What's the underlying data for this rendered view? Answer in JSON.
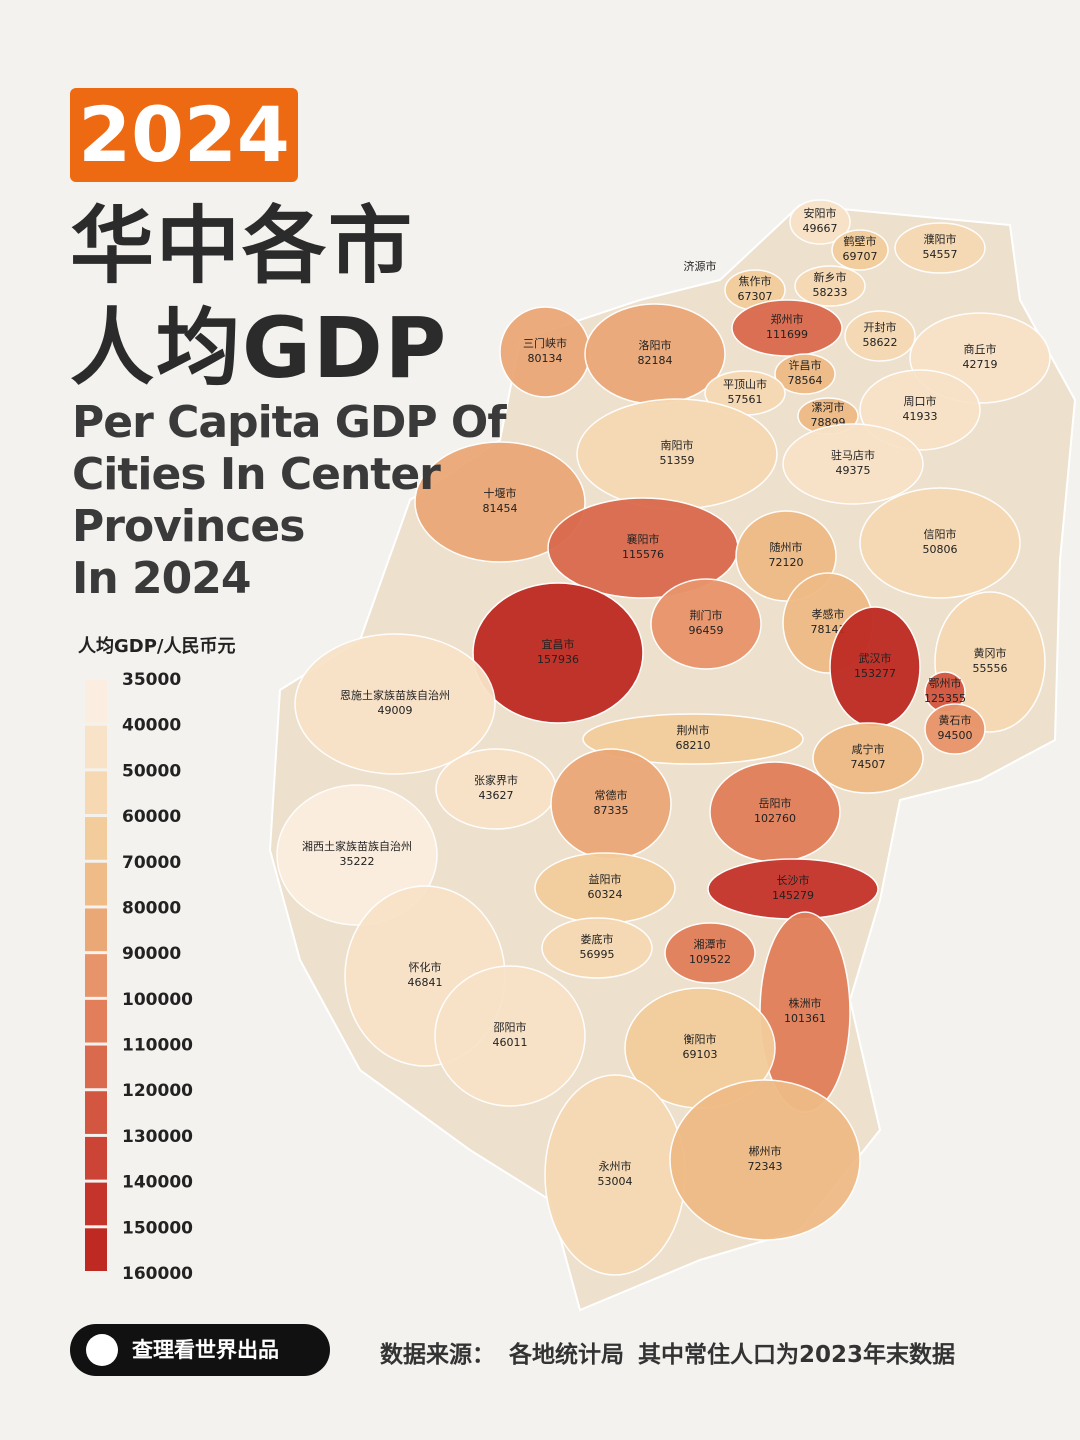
{
  "header": {
    "year": "2024",
    "title_cn": [
      "华中各市",
      "人均GDP"
    ],
    "title_en": [
      "Per Capita GDP Of",
      "Cities In Center",
      "Provinces",
      "In 2024"
    ]
  },
  "legend": {
    "title": "人均GDP/人民币元",
    "ticks": [
      35000,
      40000,
      50000,
      60000,
      70000,
      80000,
      90000,
      100000,
      110000,
      120000,
      130000,
      140000,
      150000,
      160000
    ],
    "colors": [
      "#fbeee0",
      "#f8e3c8",
      "#f6d9b3",
      "#f3cc9c",
      "#efbb86",
      "#eba877",
      "#e8946a",
      "#e27f5a",
      "#da6a4d",
      "#d35641",
      "#cc4436",
      "#c4342b",
      "#be2a22"
    ]
  },
  "cities": [
    {
      "name": "安阳市",
      "value": 49667
    },
    {
      "name": "鹤壁市",
      "value": 69707
    },
    {
      "name": "濮阳市",
      "value": 54557
    },
    {
      "name": "济源市",
      "value": null
    },
    {
      "name": "焦作市",
      "value": 67307
    },
    {
      "name": "新乡市",
      "value": 58233
    },
    {
      "name": "三门峡市",
      "value": 80134
    },
    {
      "name": "洛阳市",
      "value": 82184
    },
    {
      "name": "郑州市",
      "value": 111699
    },
    {
      "name": "开封市",
      "value": 58622
    },
    {
      "name": "商丘市",
      "value": 42719
    },
    {
      "name": "许昌市",
      "value": 78564
    },
    {
      "name": "平顶山市",
      "value": 57561
    },
    {
      "name": "周口市",
      "value": 41933
    },
    {
      "name": "漯河市",
      "value": 78899
    },
    {
      "name": "南阳市",
      "value": 51359
    },
    {
      "name": "驻马店市",
      "value": 49375
    },
    {
      "name": "十堰市",
      "value": 81454
    },
    {
      "name": "襄阳市",
      "value": 115576
    },
    {
      "name": "随州市",
      "value": 72120
    },
    {
      "name": "信阳市",
      "value": 50806
    },
    {
      "name": "宜昌市",
      "value": 157936
    },
    {
      "name": "荆门市",
      "value": 96459
    },
    {
      "name": "孝感市",
      "value": 78141
    },
    {
      "name": "武汉市",
      "value": 153277
    },
    {
      "name": "黄冈市",
      "value": 55556
    },
    {
      "name": "鄂州市",
      "value": 125355
    },
    {
      "name": "恩施土家族苗族自治州",
      "value": 49009
    },
    {
      "name": "荆州市",
      "value": 68210
    },
    {
      "name": "黄石市",
      "value": 94500
    },
    {
      "name": "咸宁市",
      "value": 74507
    },
    {
      "name": "张家界市",
      "value": 43627
    },
    {
      "name": "常德市",
      "value": 87335
    },
    {
      "name": "岳阳市",
      "value": 102760
    },
    {
      "name": "湘西土家族苗族自治州",
      "value": 35222
    },
    {
      "name": "益阳市",
      "value": 60324
    },
    {
      "name": "长沙市",
      "value": 145279
    },
    {
      "name": "娄底市",
      "value": 56995
    },
    {
      "name": "湘潭市",
      "value": 109522
    },
    {
      "name": "怀化市",
      "value": 46841
    },
    {
      "name": "株洲市",
      "value": 101361
    },
    {
      "name": "邵阳市",
      "value": 46011
    },
    {
      "name": "衡阳市",
      "value": 69103
    },
    {
      "name": "永州市",
      "value": 53004
    },
    {
      "name": "郴州市",
      "value": 72343
    }
  ],
  "footer": {
    "brand": "查理看世界出品",
    "source_label": "数据来源：",
    "source": "各地统计局",
    "note": "其中常住人口为2023年末数据"
  }
}
